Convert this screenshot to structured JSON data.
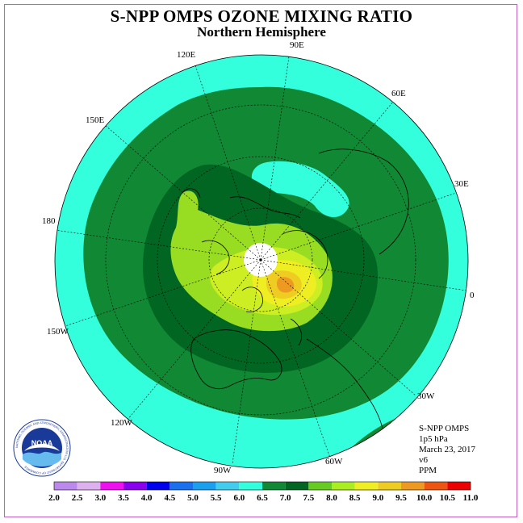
{
  "title": "S-NPP OMPS OZONE MIXING RATIO",
  "subtitle": "Northern Hemisphere",
  "longitude_labels": [
    "90E",
    "60E",
    "30E",
    "0",
    "30W",
    "60W",
    "90W",
    "120W",
    "150W",
    "180",
    "150E",
    "120E"
  ],
  "info": {
    "instrument": "S-NPP OMPS",
    "level": "1p5 hPa",
    "date": "March 23, 2017",
    "version": "v6",
    "units": "PPM"
  },
  "logo": {
    "text": "NOAA",
    "ring_text": "NATIONAL OCEANIC AND ATMOSPHERIC ADMINISTRATION U.S. DEPARTMENT OF COMMERCE"
  },
  "colorbar": {
    "ticks": [
      "2.0",
      "2.5",
      "3.0",
      "3.5",
      "4.0",
      "4.5",
      "5.0",
      "5.5",
      "6.0",
      "6.5",
      "7.0",
      "7.5",
      "8.0",
      "8.5",
      "9.0",
      "9.5",
      "10.0",
      "10.5",
      "11.0"
    ],
    "colors": [
      "#bb88ee",
      "#ddb0ee",
      "#ee10ee",
      "#8800ee",
      "#0000ee",
      "#1a70ee",
      "#1aa0ee",
      "#44ccee",
      "#33ffdd",
      "#118833",
      "#006622",
      "#66cc22",
      "#aaee22",
      "#eeee22",
      "#eecc22",
      "#ee9922",
      "#ee5511",
      "#ee0000",
      "#885533"
    ]
  },
  "map_colors": {
    "band_5_5_6_0": "#33ffdd",
    "band_6_0_6_5": "#118833",
    "band_6_5_7_0": "#006622",
    "band_7_5_8_0": "#99dd22",
    "band_8_0_8_5": "#ccee22",
    "band_8_5_9_0": "#eeee22",
    "band_9_0_9_5": "#eecc22",
    "band_9_5_10_0": "#ee9922",
    "missing_polar": "#ffffff"
  }
}
